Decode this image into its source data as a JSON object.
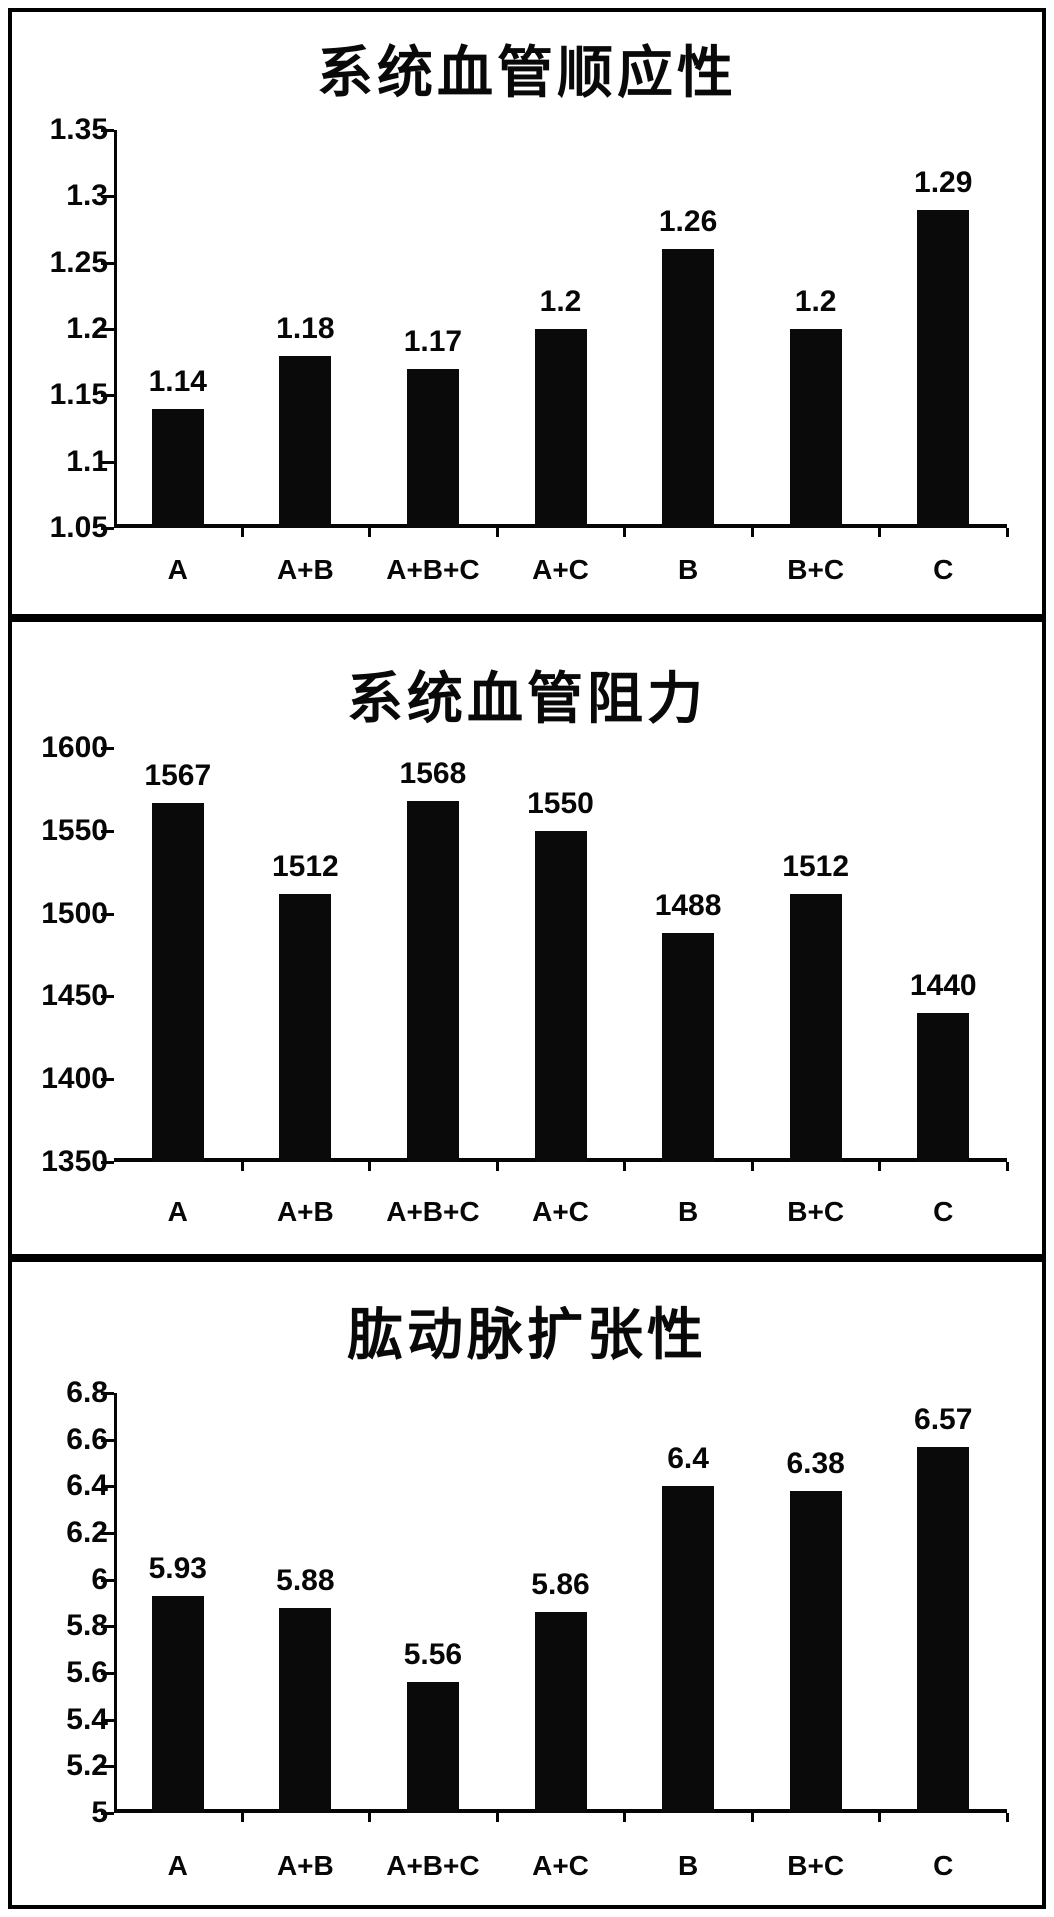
{
  "page": {
    "background": "#ffffff",
    "bar_color": "#0a0a0a",
    "axis_color": "#050505",
    "border_color": "#000000",
    "text_color": "#070707"
  },
  "chart_data": [
    {
      "type": "bar",
      "title": "系统血管顺应性",
      "categories": [
        "A",
        "A+B",
        "A+B+C",
        "A+C",
        "B",
        "B+C",
        "C"
      ],
      "values": [
        1.14,
        1.18,
        1.17,
        1.2,
        1.26,
        1.2,
        1.29
      ],
      "value_labels": [
        "1.14",
        "1.18",
        "1.17",
        "1.2",
        "1.26",
        "1.2",
        "1.29"
      ],
      "xlabel": "",
      "ylabel": "",
      "ylim": [
        1.05,
        1.35
      ],
      "ytick_values": [
        1.35,
        1.3,
        1.25,
        1.2,
        1.15,
        1.1,
        1.05
      ],
      "ytick_labels": [
        "1.35",
        "1.3",
        "1.25",
        "1.2",
        "1.15",
        "1.1",
        "1.05"
      ],
      "grid": false,
      "legend": null
    },
    {
      "type": "bar",
      "title": "系统血管阻力",
      "categories": [
        "A",
        "A+B",
        "A+B+C",
        "A+C",
        "B",
        "B+C",
        "C"
      ],
      "values": [
        1567,
        1512,
        1568,
        1550,
        1488,
        1512,
        1440
      ],
      "value_labels": [
        "1567",
        "1512",
        "1568",
        "1550",
        "1488",
        "1512",
        "1440"
      ],
      "xlabel": "",
      "ylabel": "",
      "ylim": [
        1350,
        1600
      ],
      "ytick_values": [
        1600,
        1550,
        1500,
        1450,
        1400,
        1350
      ],
      "ytick_labels": [
        "1600",
        "1550",
        "1500",
        "1450",
        "1400",
        "1350"
      ],
      "grid": false,
      "legend": null
    },
    {
      "type": "bar",
      "title": "肱动脉扩张性",
      "categories": [
        "A",
        "A+B",
        "A+B+C",
        "A+C",
        "B",
        "B+C",
        "C"
      ],
      "values": [
        5.93,
        5.88,
        5.56,
        5.86,
        6.4,
        6.38,
        6.57
      ],
      "value_labels": [
        "5.93",
        "5.88",
        "5.56",
        "5.86",
        "6.4",
        "6.38",
        "6.57"
      ],
      "xlabel": "",
      "ylabel": "",
      "ylim": [
        5,
        6.8
      ],
      "ytick_values": [
        6.8,
        6.6,
        6.4,
        6.2,
        6,
        5.8,
        5.6,
        5.4,
        5.2,
        5
      ],
      "ytick_labels": [
        "6.8",
        "6.6",
        "6.4",
        "6.2",
        "6",
        "5.8",
        "5.6",
        "5.4",
        "5.2",
        "5"
      ],
      "grid": false,
      "legend": null
    }
  ]
}
